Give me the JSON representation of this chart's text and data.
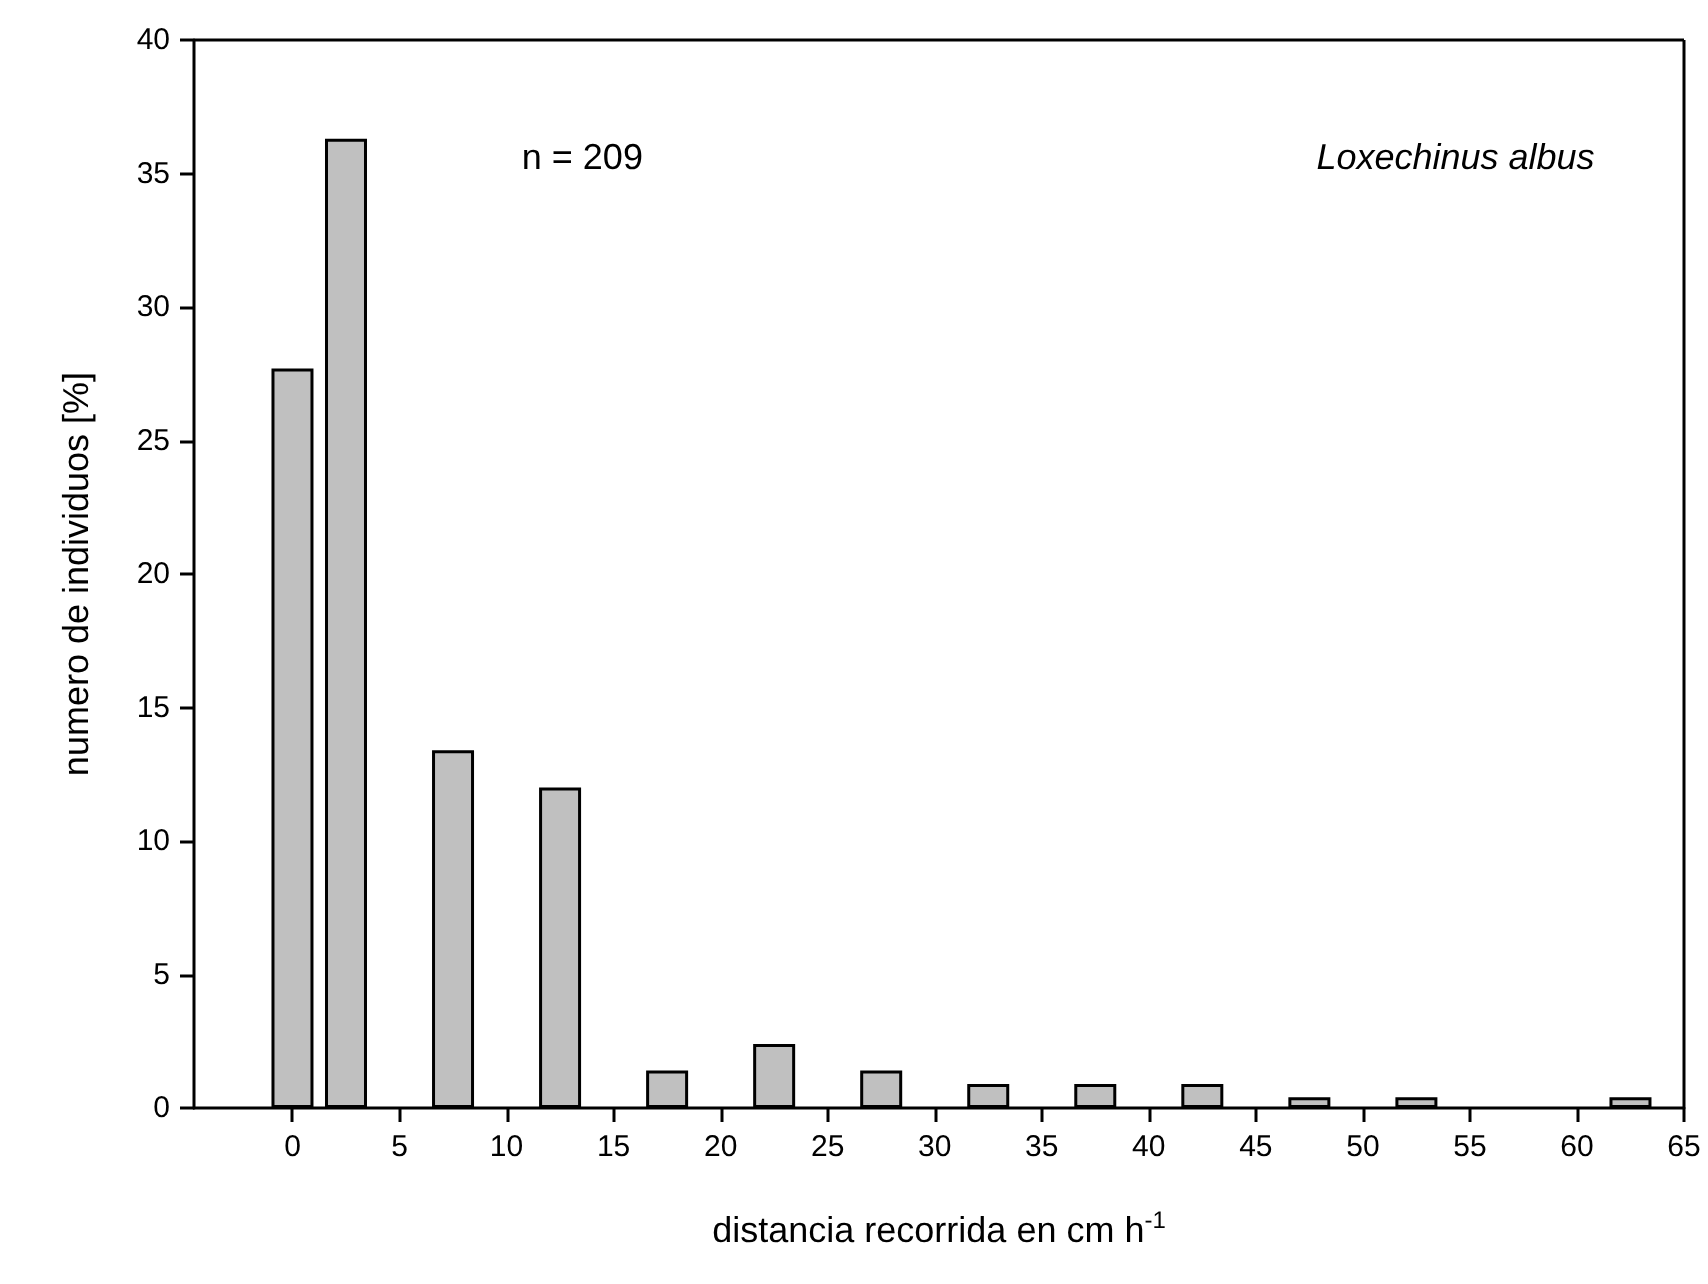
{
  "chart_data": {
    "type": "bar",
    "xlabel": "distancia recorrida en cm h$^{-1}$",
    "ylabel": "numero de individuos [%]",
    "annotations": [
      "n = 209",
      "Loxechinus albus"
    ],
    "x": [
      0,
      2.5,
      7.5,
      12.5,
      17.5,
      22.5,
      27.5,
      32.5,
      37.5,
      42.5,
      47.5,
      52.5,
      62.5
    ],
    "values": [
      27.7,
      36.3,
      13.4,
      12.0,
      1.4,
      2.4,
      1.4,
      0.9,
      0.9,
      0.9,
      0.4,
      0.4,
      0.4
    ],
    "color": "#c0c0c0",
    "xlim": [
      -4.6,
      65
    ],
    "xticks": [
      0,
      5,
      10,
      15,
      20,
      25,
      30,
      35,
      40,
      45,
      50,
      55,
      60,
      65
    ],
    "ylim": [
      0,
      40
    ],
    "yticks": [
      0,
      5,
      10,
      15,
      20,
      25,
      30,
      35,
      40
    ],
    "grid": false
  }
}
